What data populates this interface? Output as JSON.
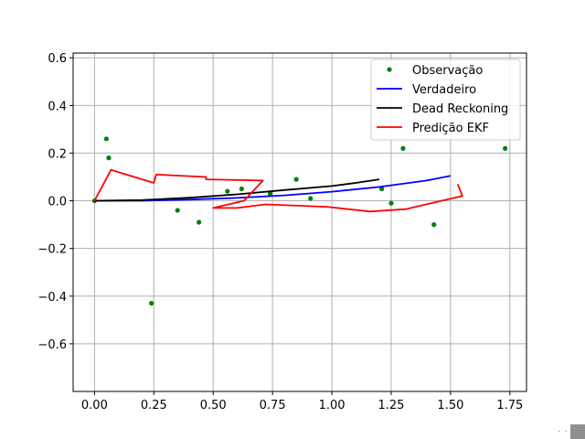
{
  "chart_data": {
    "type": "line",
    "title": "",
    "xlabel": "",
    "ylabel": "",
    "xlim": [
      -0.09,
      1.82
    ],
    "ylim": [
      -0.8,
      0.62
    ],
    "xticks": [
      0.0,
      0.25,
      0.5,
      0.75,
      1.0,
      1.25,
      1.5,
      1.75
    ],
    "xtick_labels": [
      "0.00",
      "0.25",
      "0.50",
      "0.75",
      "1.00",
      "1.25",
      "1.50",
      "1.75"
    ],
    "yticks": [
      -0.6,
      -0.4,
      -0.2,
      0.0,
      0.2,
      0.4,
      0.6
    ],
    "ytick_labels": [
      "−0.6",
      "−0.4",
      "−0.2",
      "0.0",
      "0.2",
      "0.4",
      "0.6"
    ],
    "grid": true,
    "legend_position": "top-right",
    "series": [
      {
        "name": "Observação",
        "kind": "scatter",
        "color": "#008000",
        "x": [
          0.0,
          0.05,
          0.06,
          0.24,
          0.35,
          0.44,
          0.56,
          0.62,
          0.74,
          0.85,
          0.91,
          1.21,
          1.25,
          1.3,
          1.43,
          1.73
        ],
        "y": [
          0.0,
          0.26,
          0.18,
          -0.43,
          -0.04,
          -0.09,
          0.04,
          0.05,
          0.03,
          0.09,
          0.01,
          0.05,
          -0.01,
          0.22,
          -0.1,
          0.22
        ]
      },
      {
        "name": "Verdadeiro",
        "kind": "line",
        "color": "#0000ff",
        "x": [
          0.0,
          0.2,
          0.4,
          0.6,
          0.8,
          1.0,
          1.2,
          1.4,
          1.5
        ],
        "y": [
          0.0,
          0.0,
          0.005,
          0.012,
          0.023,
          0.038,
          0.058,
          0.085,
          0.105
        ]
      },
      {
        "name": "Dead Reckoning",
        "kind": "line",
        "color": "#000000",
        "x": [
          0.0,
          0.2,
          0.4,
          0.6,
          0.8,
          1.0,
          1.1,
          1.2
        ],
        "y": [
          0.0,
          0.003,
          0.013,
          0.027,
          0.045,
          0.062,
          0.075,
          0.09
        ]
      },
      {
        "name": "Predição EKF",
        "kind": "line",
        "color": "#ff0000",
        "x": [
          0.0,
          0.07,
          0.25,
          0.26,
          0.47,
          0.47,
          0.71,
          0.63,
          0.5,
          0.6,
          0.72,
          0.98,
          1.16,
          1.31,
          1.55,
          1.53
        ],
        "y": [
          0.0,
          0.13,
          0.075,
          0.11,
          0.1,
          0.09,
          0.085,
          0.0,
          -0.03,
          -0.03,
          -0.015,
          -0.025,
          -0.045,
          -0.035,
          0.02,
          0.07
        ]
      }
    ]
  }
}
